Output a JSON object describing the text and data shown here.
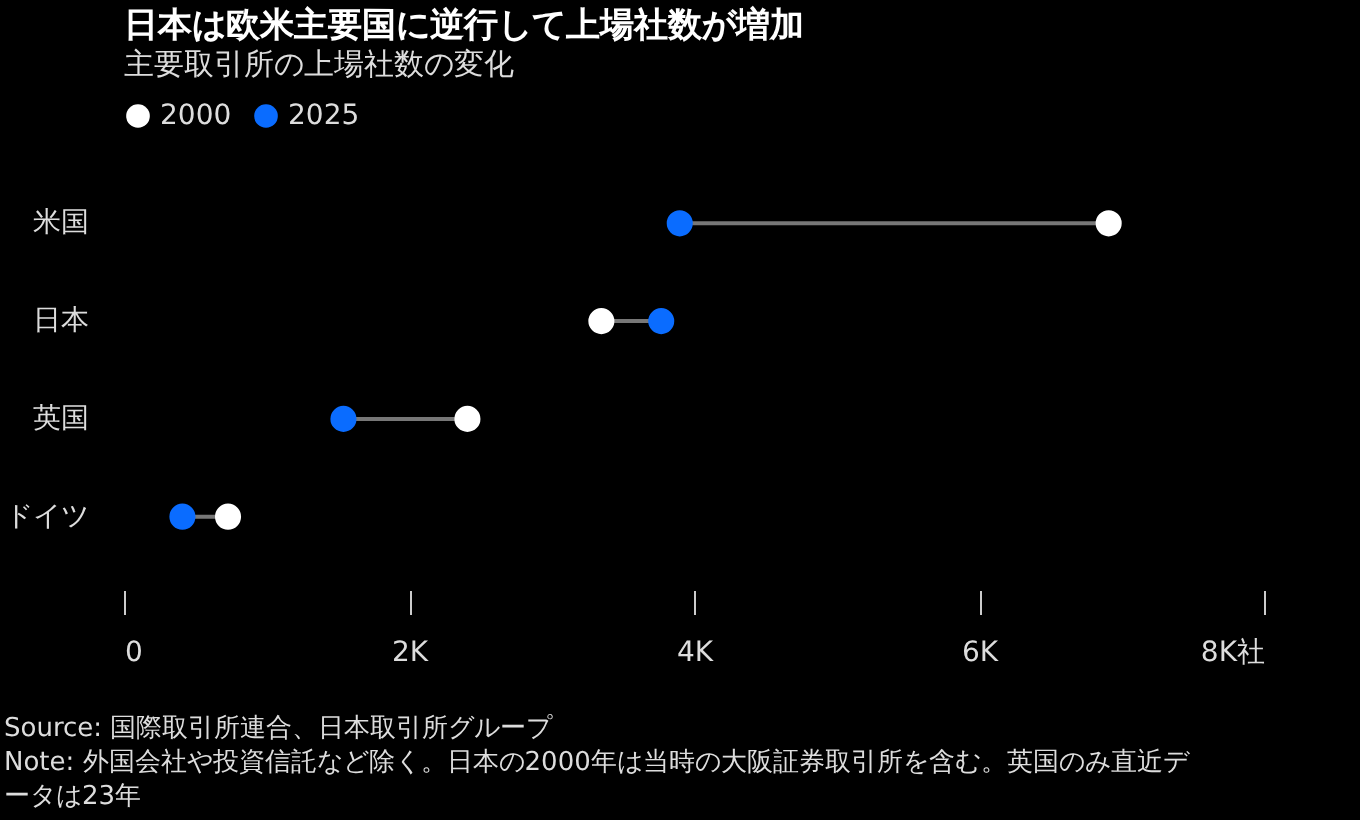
{
  "chart_data": {
    "type": "scatter",
    "orientation": "horizontal",
    "title": "日本は欧米主要国に逆行して上場社数が増加",
    "subtitle": "主要取引所の上場社数の変化",
    "categories": [
      "米国",
      "日本",
      "英国",
      "ドイツ"
    ],
    "series": [
      {
        "name": "2000",
        "color": "#ffffff",
        "values": [
          6910,
          3350,
          2410,
          730
        ]
      },
      {
        "name": "2025",
        "color": "#0a6cff",
        "values": [
          3900,
          3770,
          1540,
          410
        ]
      }
    ],
    "xlim": [
      0,
      8000
    ],
    "xticks": [
      0,
      {
        "value": 2000,
        "label": "2K"
      },
      {
        "value": 4000,
        "label": "4K"
      },
      {
        "value": 6000,
        "label": "6K"
      },
      {
        "value": 8000,
        "label": "8K社"
      }
    ],
    "grid": false,
    "legend": "top left",
    "marker": "circle",
    "annotations": [
      "Source: 国際取引所連合、日本取引所グループ",
      "Note: 外国会社や投資信託など除く。日本の2000年は当時の大阪証券取引所を含む。英国のみ直近データは23年"
    ]
  }
}
